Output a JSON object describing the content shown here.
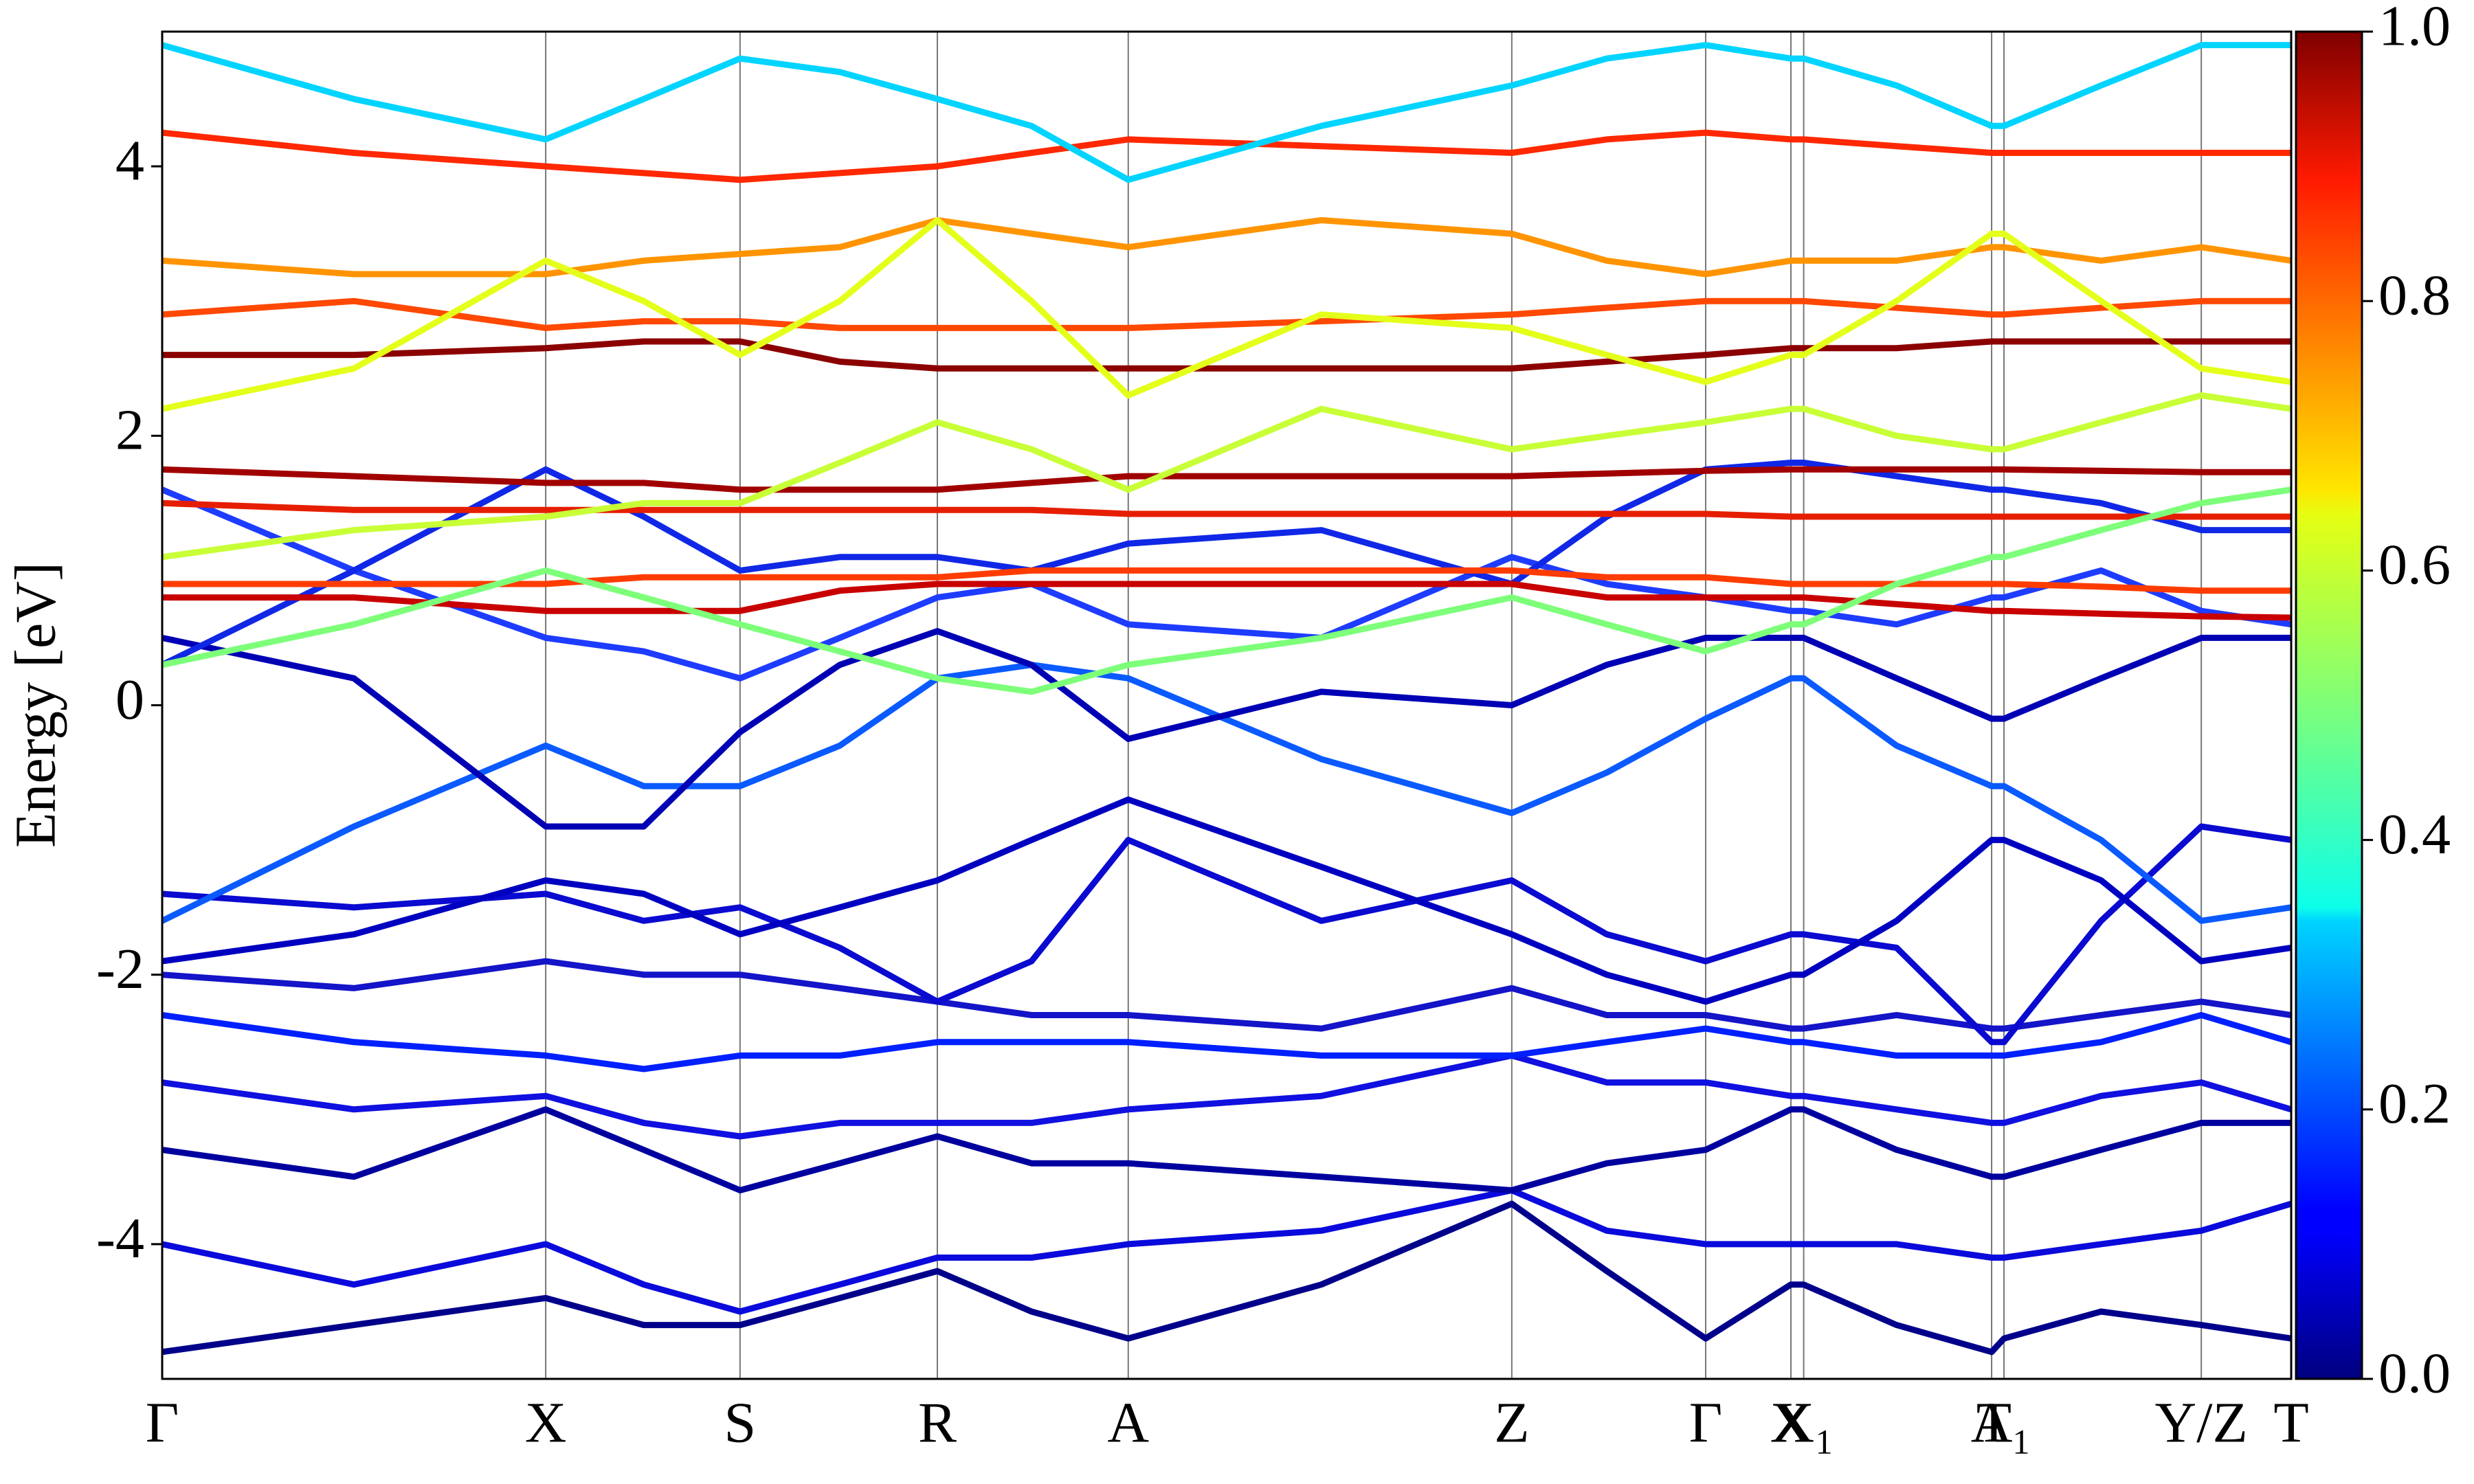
{
  "chart_data": {
    "type": "line",
    "y_label": "Energy [eV]",
    "x": [
      0,
      0.45,
      0.9,
      1.13,
      1.356,
      1.59,
      1.819,
      2.04,
      2.267,
      2.72,
      3.167,
      3.39,
      3.622,
      3.822,
      3.852,
      4.07,
      4.293,
      4.322,
      4.55,
      4.785,
      4.996
    ],
    "xlim": [
      0,
      4.996
    ],
    "xticks": [
      {
        "value": 0,
        "label": "Γ"
      },
      {
        "value": 0.9,
        "label": "X"
      },
      {
        "value": 1.356,
        "label": "S"
      },
      {
        "value": 1.819,
        "label": "R"
      },
      {
        "value": 2.267,
        "label": "A"
      },
      {
        "value": 3.167,
        "label": "Z"
      },
      {
        "value": 3.622,
        "label": "Γ"
      },
      {
        "value": 3.822,
        "label": "X"
      },
      {
        "value": 3.852,
        "label": "X₁"
      },
      {
        "value": 4.293,
        "label": "A"
      },
      {
        "value": 4.322,
        "label": "T₁"
      },
      {
        "value": 4.785,
        "label": "Y/Z"
      },
      {
        "value": 4.996,
        "label": "T"
      }
    ],
    "ylim": [
      -5,
      5
    ],
    "yticks": [
      4,
      2,
      0,
      -2,
      -4
    ],
    "colormap": "jet",
    "clim": [
      0,
      1
    ],
    "cticks": [
      {
        "value": 0,
        "label": "0.0"
      },
      0.2,
      0.4,
      0.6,
      0.8,
      {
        "value": 1,
        "label": "1.0"
      }
    ],
    "series": [
      {
        "color": "#00008b",
        "values": [
          -4.8,
          -4.6,
          -4.4,
          -4.6,
          -4.6,
          -4.4,
          -4.2,
          -4.5,
          -4.7,
          -4.3,
          -3.7,
          -4.2,
          -4.7,
          -4.3,
          -4.3,
          -4.6,
          -4.8,
          -4.7,
          -4.5,
          -4.6,
          -4.7
        ]
      },
      {
        "color": "#0a0adc",
        "values": [
          -4.0,
          -4.3,
          -4.0,
          -4.3,
          -4.5,
          -4.3,
          -4.1,
          -4.1,
          -4.0,
          -3.9,
          -3.6,
          -3.9,
          -4.0,
          -4.0,
          -4.0,
          -4.0,
          -4.1,
          -4.1,
          -4.0,
          -3.9,
          -3.7
        ]
      },
      {
        "color": "#00009f",
        "values": [
          -3.3,
          -3.5,
          -3.0,
          -3.3,
          -3.6,
          -3.4,
          -3.2,
          -3.4,
          -3.4,
          -3.5,
          -3.6,
          -3.4,
          -3.3,
          -3.0,
          -3.0,
          -3.3,
          -3.5,
          -3.5,
          -3.3,
          -3.1,
          -3.1
        ]
      },
      {
        "color": "#1010e0",
        "values": [
          -2.8,
          -3.0,
          -2.9,
          -3.1,
          -3.2,
          -3.1,
          -3.1,
          -3.1,
          -3.0,
          -2.9,
          -2.6,
          -2.8,
          -2.8,
          -2.9,
          -2.9,
          -3.0,
          -3.1,
          -3.1,
          -2.9,
          -2.8,
          -3.0
        ]
      },
      {
        "color": "#0020ff",
        "values": [
          -2.3,
          -2.5,
          -2.6,
          -2.7,
          -2.6,
          -2.6,
          -2.5,
          -2.5,
          -2.5,
          -2.6,
          -2.6,
          -2.5,
          -2.4,
          -2.5,
          -2.5,
          -2.6,
          -2.6,
          -2.6,
          -2.5,
          -2.3,
          -2.5
        ]
      },
      {
        "color": "#1414c8",
        "values": [
          -2.0,
          -2.1,
          -1.9,
          -2.0,
          -2.0,
          -2.1,
          -2.2,
          -2.3,
          -2.3,
          -2.4,
          -2.1,
          -2.3,
          -2.3,
          -2.4,
          -2.4,
          -2.3,
          -2.4,
          -2.4,
          -2.3,
          -2.2,
          -2.3
        ]
      },
      {
        "color": "#0a0ad0",
        "values": [
          -1.4,
          -1.5,
          -1.4,
          -1.6,
          -1.5,
          -1.8,
          -2.2,
          -1.9,
          -1.0,
          -1.6,
          -1.3,
          -1.7,
          -1.9,
          -1.7,
          -1.7,
          -1.8,
          -2.5,
          -2.5,
          -1.6,
          -0.9,
          -1.0
        ]
      },
      {
        "color": "#0000c0",
        "values": [
          -1.9,
          -1.7,
          -1.3,
          -1.4,
          -1.7,
          -1.5,
          -1.3,
          -1.0,
          -0.7,
          -1.2,
          -1.7,
          -2.0,
          -2.2,
          -2.0,
          -2.0,
          -1.6,
          -1.0,
          -1.0,
          -1.3,
          -1.9,
          -1.8
        ]
      },
      {
        "color": "#0a5aff",
        "values": [
          -1.6,
          -0.9,
          -0.3,
          -0.6,
          -0.6,
          -0.3,
          0.2,
          0.3,
          0.2,
          -0.4,
          -0.8,
          -0.5,
          -0.1,
          0.2,
          0.2,
          -0.3,
          -0.6,
          -0.6,
          -1.0,
          -1.6,
          -1.5
        ]
      },
      {
        "color": "#0000b4",
        "values": [
          0.5,
          0.2,
          -0.9,
          -0.9,
          -0.2,
          0.3,
          0.55,
          0.3,
          -0.25,
          0.1,
          0.0,
          0.3,
          0.5,
          0.5,
          0.5,
          0.2,
          -0.1,
          -0.1,
          0.2,
          0.5,
          0.5
        ]
      },
      {
        "color": "#1e3cff",
        "values": [
          1.6,
          1.0,
          0.5,
          0.4,
          0.2,
          0.5,
          0.8,
          0.9,
          0.6,
          0.5,
          1.1,
          0.9,
          0.8,
          0.7,
          0.7,
          0.6,
          0.8,
          0.8,
          1.0,
          0.7,
          0.6
        ]
      },
      {
        "color": "#1028e6",
        "values": [
          0.3,
          1.0,
          1.75,
          1.4,
          1.0,
          1.1,
          1.1,
          1.0,
          1.2,
          1.3,
          0.9,
          1.4,
          1.75,
          1.8,
          1.8,
          1.7,
          1.6,
          1.6,
          1.5,
          1.3,
          1.3
        ]
      },
      {
        "color": "#c80000",
        "values": [
          0.8,
          0.8,
          0.7,
          0.7,
          0.7,
          0.85,
          0.9,
          0.9,
          0.9,
          0.9,
          0.9,
          0.8,
          0.8,
          0.8,
          0.8,
          0.75,
          0.7,
          0.7,
          0.68,
          0.66,
          0.65
        ]
      },
      {
        "color": "#ff3c00",
        "values": [
          0.9,
          0.9,
          0.9,
          0.95,
          0.95,
          0.95,
          0.95,
          1.0,
          1.0,
          1.0,
          1.0,
          0.95,
          0.95,
          0.9,
          0.9,
          0.9,
          0.9,
          0.9,
          0.88,
          0.85,
          0.85
        ]
      },
      {
        "color": "#a00000",
        "values": [
          1.75,
          1.7,
          1.65,
          1.65,
          1.6,
          1.6,
          1.6,
          1.65,
          1.7,
          1.7,
          1.7,
          1.72,
          1.74,
          1.75,
          1.75,
          1.75,
          1.75,
          1.75,
          1.74,
          1.73,
          1.73
        ]
      },
      {
        "color": "#e61e00",
        "values": [
          1.5,
          1.45,
          1.45,
          1.45,
          1.45,
          1.45,
          1.45,
          1.45,
          1.42,
          1.42,
          1.42,
          1.42,
          1.42,
          1.4,
          1.4,
          1.4,
          1.4,
          1.4,
          1.4,
          1.4,
          1.4
        ]
      },
      {
        "color": "#7dff7a",
        "values": [
          0.3,
          0.6,
          1.0,
          0.8,
          0.6,
          0.4,
          0.2,
          0.1,
          0.3,
          0.5,
          0.8,
          0.6,
          0.4,
          0.6,
          0.6,
          0.9,
          1.1,
          1.1,
          1.3,
          1.5,
          1.6
        ]
      },
      {
        "color": "#c8ff36",
        "values": [
          1.1,
          1.3,
          1.4,
          1.5,
          1.5,
          1.8,
          2.1,
          1.9,
          1.6,
          2.2,
          1.9,
          2.0,
          2.1,
          2.2,
          2.2,
          2.0,
          1.9,
          1.9,
          2.1,
          2.3,
          2.2
        ]
      },
      {
        "color": "#8b0000",
        "values": [
          2.6,
          2.6,
          2.65,
          2.7,
          2.7,
          2.55,
          2.5,
          2.5,
          2.5,
          2.5,
          2.5,
          2.55,
          2.6,
          2.65,
          2.65,
          2.65,
          2.7,
          2.7,
          2.7,
          2.7,
          2.7
        ]
      },
      {
        "color": "#ff4800",
        "values": [
          2.9,
          3.0,
          2.8,
          2.85,
          2.85,
          2.8,
          2.8,
          2.8,
          2.8,
          2.85,
          2.9,
          2.95,
          3.0,
          3.0,
          3.0,
          2.95,
          2.9,
          2.9,
          2.95,
          3.0,
          3.0
        ]
      },
      {
        "color": "#ff9400",
        "values": [
          3.3,
          3.2,
          3.2,
          3.3,
          3.35,
          3.4,
          3.6,
          3.5,
          3.4,
          3.6,
          3.5,
          3.3,
          3.2,
          3.3,
          3.3,
          3.3,
          3.4,
          3.4,
          3.3,
          3.4,
          3.3
        ]
      },
      {
        "color": "#ff2800",
        "values": [
          4.25,
          4.1,
          4.0,
          3.95,
          3.9,
          3.95,
          4.0,
          4.1,
          4.2,
          4.15,
          4.1,
          4.2,
          4.25,
          4.2,
          4.2,
          4.15,
          4.1,
          4.1,
          4.1,
          4.1,
          4.1
        ]
      },
      {
        "color": "#00d4ff",
        "values": [
          4.9,
          4.5,
          4.2,
          4.5,
          4.8,
          4.7,
          4.5,
          4.3,
          3.9,
          4.3,
          4.6,
          4.8,
          4.9,
          4.8,
          4.8,
          4.6,
          4.3,
          4.3,
          4.6,
          4.9,
          4.9
        ]
      },
      {
        "color": "#e4ff1a",
        "values": [
          2.2,
          2.5,
          3.3,
          3.0,
          2.6,
          3.0,
          3.6,
          3.0,
          2.3,
          2.9,
          2.8,
          2.6,
          2.4,
          2.6,
          2.6,
          3.0,
          3.5,
          3.5,
          3.0,
          2.5,
          2.4
        ]
      }
    ]
  }
}
